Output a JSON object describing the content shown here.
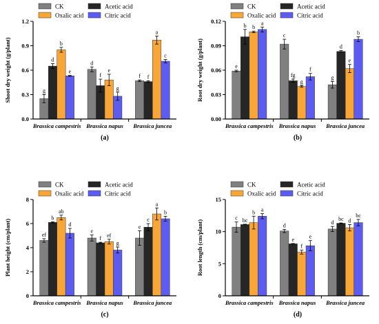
{
  "colors": {
    "CK": "#808080",
    "Acetic acid": "#262626",
    "Oxalic acid": "#f7a637",
    "Citric acid": "#5c5cf0"
  },
  "chart_data": [
    {
      "type": "bar",
      "panel_label": "(a)",
      "ylabel": "Shoot dry weight (g/plant)",
      "ylim": [
        0,
        1.2
      ],
      "yticks": [
        "0.0",
        "0.3",
        "0.6",
        "0.9",
        "1.2"
      ],
      "categories": [
        "Brassica campestris",
        "Brassica napus",
        "Brassica juncea"
      ],
      "legend": "top-left",
      "series": [
        {
          "name": "CK",
          "values": [
            0.25,
            0.61,
            0.47
          ],
          "errors": [
            0.05,
            0.03,
            0.01
          ],
          "letters": [
            "g",
            "d",
            "f"
          ]
        },
        {
          "name": "Acetic acid",
          "values": [
            0.65,
            0.41,
            0.46
          ],
          "errors": [
            0.03,
            0.08,
            0.01
          ],
          "letters": [
            "d",
            "f",
            "f"
          ]
        },
        {
          "name": "Oxalic acid",
          "values": [
            0.85,
            0.48,
            0.97
          ],
          "errors": [
            0.03,
            0.07,
            0.05
          ],
          "letters": [
            "b",
            "e",
            "a"
          ]
        },
        {
          "name": "Citric acid",
          "values": [
            0.53,
            0.28,
            0.71
          ],
          "errors": [
            0.005,
            0.05,
            0.02
          ],
          "letters": [
            "e",
            "g",
            "c"
          ]
        }
      ]
    },
    {
      "type": "bar",
      "panel_label": "(b)",
      "ylabel": "Root dry weight (g/plant)",
      "ylim": [
        0,
        0.12
      ],
      "yticks": [
        "0.00",
        "0.03",
        "0.06",
        "0.09",
        "0.12"
      ],
      "categories": [
        "Brassica campestris",
        "Brassica napus",
        "Brassica juncea"
      ],
      "legend": "top-left",
      "series": [
        {
          "name": "CK",
          "values": [
            0.059,
            0.092,
            0.042
          ],
          "errors": [
            0.001,
            0.006,
            0.004
          ],
          "letters": [
            "e",
            "c",
            "g"
          ]
        },
        {
          "name": "Acetic acid",
          "values": [
            0.101,
            0.047,
            0.083
          ],
          "errors": [
            0.009,
            0.002,
            0.001
          ],
          "letters": [
            "b",
            "fg",
            "d"
          ]
        },
        {
          "name": "Oxalic acid",
          "values": [
            0.107,
            0.04,
            0.062
          ],
          "errors": [
            0.001,
            0.001,
            0.005
          ],
          "letters": [
            "b",
            "g",
            "e"
          ]
        },
        {
          "name": "Citric acid",
          "values": [
            0.11,
            0.052,
            0.098
          ],
          "errors": [
            0.003,
            0.004,
            0.003
          ],
          "letters": [
            "a",
            "f",
            "b"
          ]
        }
      ]
    },
    {
      "type": "bar",
      "panel_label": "(c)",
      "ylabel": "Plant height (cm/plant)",
      "ylim": [
        0,
        8
      ],
      "yticks": [
        "0",
        "2",
        "4",
        "6",
        "8"
      ],
      "categories": [
        "Brassica campestris",
        "Brassica napus",
        "Brassica juncea"
      ],
      "legend": "top-left",
      "series": [
        {
          "name": "CK",
          "values": [
            4.6,
            4.8,
            4.8
          ],
          "errors": [
            0.15,
            0.25,
            0.6
          ],
          "letters": [
            "ef",
            "e",
            "e"
          ]
        },
        {
          "name": "Acetic acid",
          "values": [
            6.1,
            4.4,
            5.7
          ],
          "errors": [
            0.05,
            0.05,
            0.3
          ],
          "letters": [
            "b",
            "f",
            "c"
          ]
        },
        {
          "name": "Oxalic acid",
          "values": [
            6.5,
            4.5,
            6.8
          ],
          "errors": [
            0.2,
            0.2,
            0.5
          ],
          "letters": [
            "ab",
            "ef",
            "a"
          ]
        },
        {
          "name": "Citric acid",
          "values": [
            5.2,
            3.8,
            6.4
          ],
          "errors": [
            0.4,
            0.25,
            0.2
          ],
          "letters": [
            "d",
            "g",
            "b"
          ]
        }
      ]
    },
    {
      "type": "bar",
      "panel_label": "(d)",
      "ylabel": "Root length (cm/plant)",
      "ylim": [
        0,
        15
      ],
      "yticks": [
        "0",
        "5",
        "10",
        "15"
      ],
      "categories": [
        "Brassica campestris",
        "Brassica napus",
        "Brassica juncea"
      ],
      "legend": "top-left",
      "series": [
        {
          "name": "CK",
          "values": [
            10.7,
            10.1,
            10.4
          ],
          "errors": [
            0.8,
            0.25,
            0.4
          ],
          "letters": [
            "c",
            "d",
            "d"
          ]
        },
        {
          "name": "Acetic acid",
          "values": [
            11.1,
            8.1,
            11.3
          ],
          "errors": [
            0.05,
            0.05,
            0.05
          ],
          "letters": [
            "bc",
            "e",
            "bc"
          ]
        },
        {
          "name": "Oxalic acid",
          "values": [
            11.4,
            6.8,
            10.6
          ],
          "errors": [
            1.0,
            0.3,
            0.5
          ],
          "letters": [
            "b",
            "f",
            "d"
          ]
        },
        {
          "name": "Citric acid",
          "values": [
            12.4,
            7.8,
            11.4
          ],
          "errors": [
            0.4,
            0.8,
            0.5
          ],
          "letters": [
            "a",
            "e",
            "bc"
          ]
        }
      ]
    }
  ]
}
